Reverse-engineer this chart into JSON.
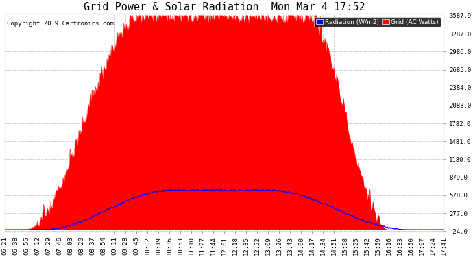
{
  "title": "Grid Power & Solar Radiation  Mon Mar 4 17:52",
  "copyright": "Copyright 2019 Cartronics.com",
  "background_color": "#ffffff",
  "plot_bg_color": "#ffffff",
  "grid_color": "#c8c8c8",
  "yticks": [
    3587.9,
    3287.0,
    2986.0,
    2685.0,
    2384.0,
    2083.0,
    1782.0,
    1481.0,
    1180.0,
    879.0,
    578.0,
    277.0,
    -24.0
  ],
  "ymin": -24.0,
  "ymax": 3587.9,
  "xtick_labels": [
    "06:21",
    "06:38",
    "06:55",
    "07:12",
    "07:29",
    "07:46",
    "08:03",
    "08:20",
    "08:37",
    "08:54",
    "09:11",
    "09:28",
    "09:45",
    "10:02",
    "10:19",
    "10:36",
    "10:53",
    "11:10",
    "11:27",
    "11:44",
    "12:01",
    "12:18",
    "12:35",
    "12:52",
    "13:09",
    "13:26",
    "13:43",
    "14:00",
    "14:17",
    "14:34",
    "14:51",
    "15:08",
    "15:25",
    "15:42",
    "15:59",
    "16:16",
    "16:33",
    "16:50",
    "17:07",
    "17:24",
    "17:41"
  ],
  "legend_radiation_label": "Radiation (W/m2)",
  "legend_grid_label": "Grid (AC Watts)",
  "legend_radiation_color": "#0000ff",
  "legend_grid_color": "#ff0000",
  "radiation_fill_color": "#ff0000",
  "grid_line_color": "#0000ff",
  "title_fontsize": 11,
  "tick_fontsize": 6.5,
  "copyright_fontsize": 6.5,
  "radiation_peak": 3587.9,
  "grid_peak": 660,
  "n_points": 500
}
